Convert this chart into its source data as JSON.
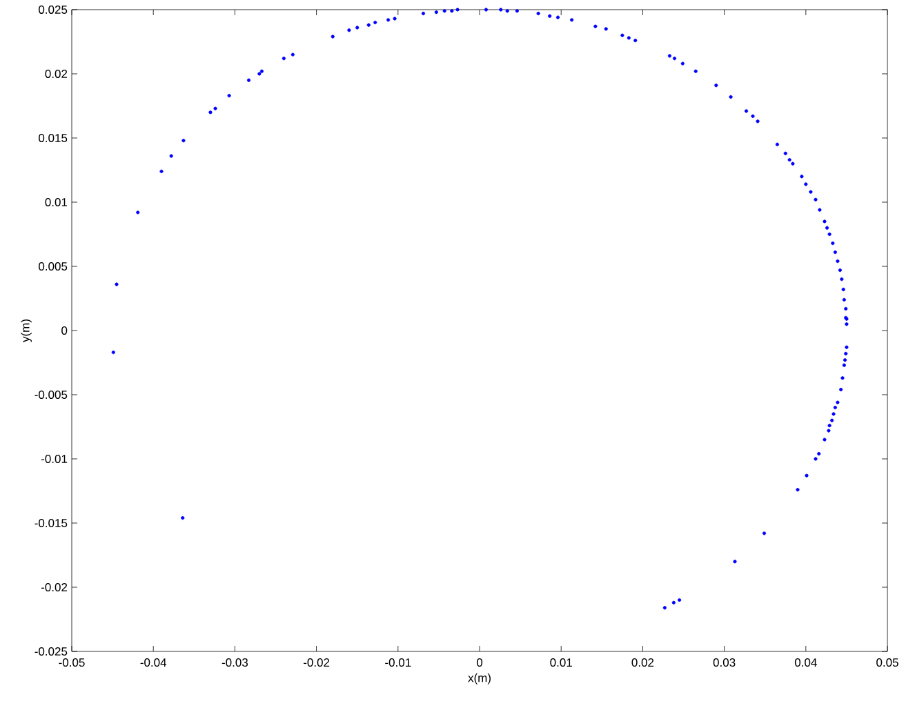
{
  "chart_data": {
    "type": "scatter",
    "xlabel": "x(m)",
    "ylabel": "y(m)",
    "marker": "circle",
    "color": "#0000ff",
    "xlim": [
      -0.05,
      0.05
    ],
    "ylim": [
      -0.025,
      0.025
    ],
    "xticks": [
      -0.05,
      -0.04,
      -0.03,
      -0.02,
      -0.01,
      0,
      0.01,
      0.02,
      0.03,
      0.04,
      0.05
    ],
    "yticks": [
      -0.025,
      -0.02,
      -0.015,
      -0.01,
      -0.005,
      0,
      0.005,
      0.01,
      0.015,
      0.02,
      0.025
    ],
    "x": [
      -0.0449,
      -0.0445,
      -0.0419,
      -0.039,
      -0.0378,
      -0.0363,
      -0.0364,
      -0.033,
      -0.0324,
      -0.0307,
      -0.0283,
      -0.027,
      -0.0267,
      -0.024,
      -0.0229,
      -0.018,
      -0.016,
      -0.015,
      -0.0136,
      -0.0128,
      -0.0112,
      -0.0104,
      -0.0069,
      -0.0053,
      -0.0043,
      -0.0034,
      -0.0027,
      0.0008,
      0.0026,
      0.0034,
      0.0046,
      0.0072,
      0.0086,
      0.0096,
      0.0113,
      0.0142,
      0.0155,
      0.0175,
      0.0183,
      0.0191,
      0.0233,
      0.0239,
      0.0249,
      0.0265,
      0.029,
      0.0308,
      0.0327,
      0.0335,
      0.0341,
      0.0365,
      0.0375,
      0.038,
      0.0384,
      0.0395,
      0.04,
      0.0406,
      0.0412,
      0.0417,
      0.0423,
      0.0426,
      0.0429,
      0.0433,
      0.0436,
      0.0439,
      0.0442,
      0.0444,
      0.0446,
      0.0447,
      0.0449,
      0.0449,
      0.045,
      0.045,
      0.045,
      0.0449,
      0.0448,
      0.0447,
      0.0445,
      0.0443,
      0.0439,
      0.0436,
      0.0434,
      0.0432,
      0.0429,
      0.0428,
      0.0423,
      0.0416,
      0.0412,
      0.0401,
      0.039,
      0.0349,
      0.0313,
      0.0245,
      0.0238,
      0.0227
    ],
    "values": [
      -0.0017,
      0.0036,
      0.0092,
      0.0124,
      0.0136,
      0.0148,
      -0.0146,
      0.017,
      0.0173,
      0.0183,
      0.0195,
      0.02,
      0.0202,
      0.0212,
      0.0215,
      0.0229,
      0.0234,
      0.0236,
      0.0238,
      0.024,
      0.0242,
      0.0243,
      0.0247,
      0.0248,
      0.0249,
      0.0249,
      0.025,
      0.025,
      0.025,
      0.0249,
      0.0249,
      0.0247,
      0.0245,
      0.0244,
      0.0242,
      0.0237,
      0.0235,
      0.023,
      0.0228,
      0.0226,
      0.0214,
      0.0212,
      0.0208,
      0.0202,
      0.0191,
      0.0182,
      0.0171,
      0.0167,
      0.0163,
      0.0145,
      0.0138,
      0.0133,
      0.013,
      0.012,
      0.0114,
      0.0108,
      0.0102,
      0.0094,
      0.0085,
      0.008,
      0.0075,
      0.0068,
      0.0061,
      0.0054,
      0.0047,
      0.004,
      0.0032,
      0.0024,
      0.0017,
      0.001,
      0.0005,
      0.0009,
      -0.0013,
      -0.0018,
      -0.0023,
      -0.0027,
      -0.0037,
      -0.0046,
      -0.0056,
      -0.006,
      -0.0065,
      -0.007,
      -0.0074,
      -0.0078,
      -0.0085,
      -0.0096,
      -0.01,
      -0.0113,
      -0.0124,
      -0.0158,
      -0.018,
      -0.021,
      -0.0212,
      -0.0216
    ]
  }
}
